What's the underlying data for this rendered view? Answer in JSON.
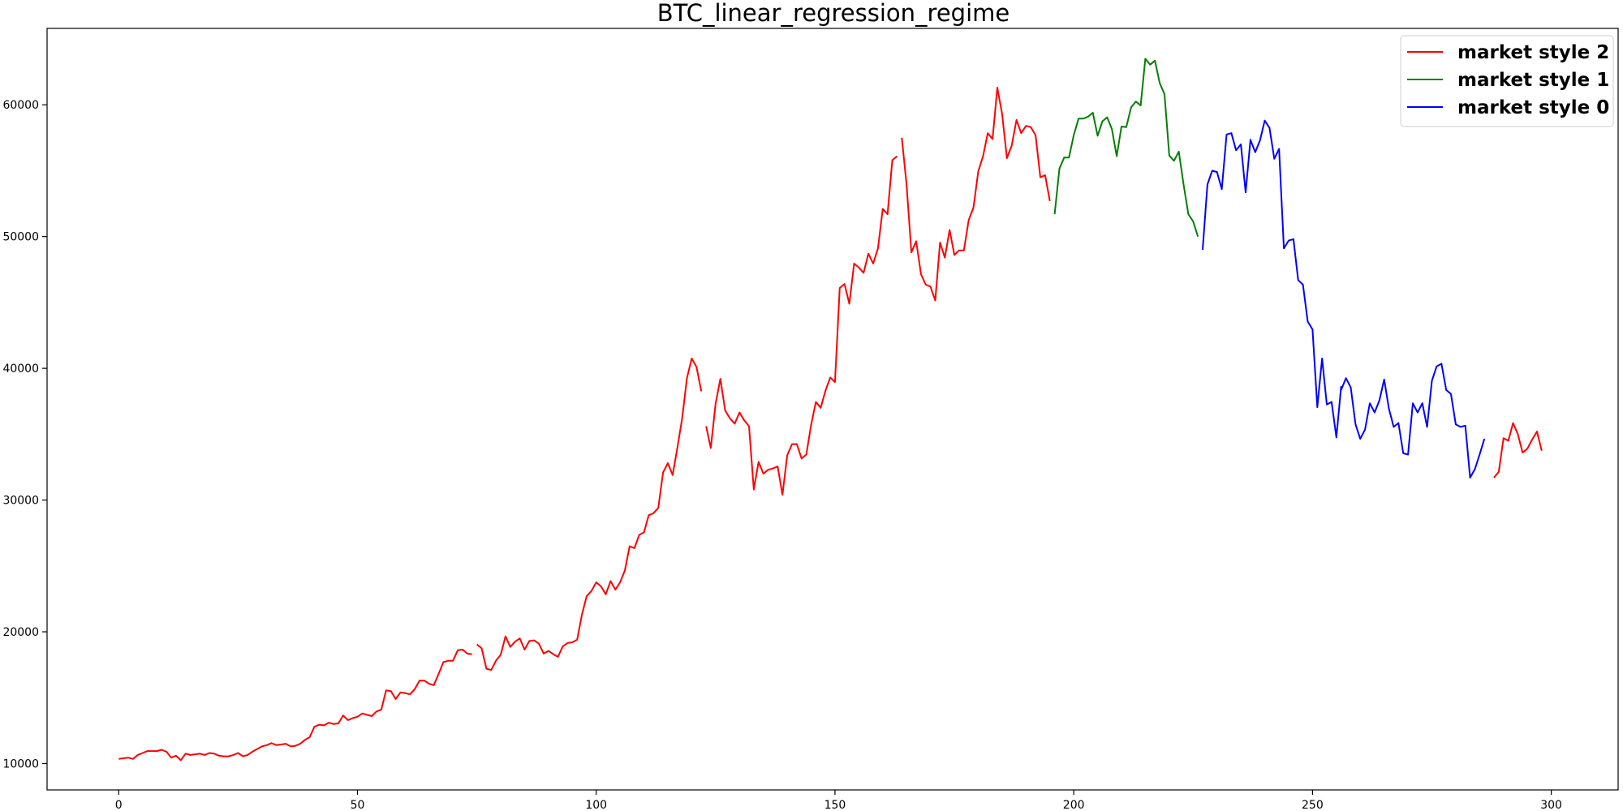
{
  "chart_data": {
    "type": "line",
    "title": "BTC_linear_regression_regime",
    "xlabel": "",
    "ylabel": "",
    "xlim": [
      -15,
      314
    ],
    "ylim": [
      8000,
      65800
    ],
    "xticks": [
      0,
      50,
      100,
      150,
      200,
      250,
      300
    ],
    "yticks": [
      10000,
      20000,
      30000,
      40000,
      50000,
      60000
    ],
    "grid": false,
    "legend_position": "top-right",
    "colors": {
      "market style 2": "#ff0000",
      "market style 1": "#008000",
      "market style 0": "#0000ff"
    },
    "legend": [
      "market style 2",
      "market style 1",
      "market style 0"
    ],
    "segments": [
      {
        "style": "market style 2",
        "x_start": 0,
        "y": [
          10350,
          10400,
          10450,
          10350,
          10650,
          10800,
          10950,
          10950,
          10950,
          11050,
          10900,
          10450,
          10600,
          10250,
          10750,
          10650,
          10700,
          10750,
          10650,
          10800,
          10750,
          10600,
          10550,
          10550,
          10650,
          10800,
          10550,
          10650,
          10900,
          11100,
          11300,
          11400,
          11550,
          11400,
          11450,
          11500,
          11300,
          11350,
          11500,
          11800,
          12000,
          12800,
          12950,
          12900,
          13100,
          13000,
          13050,
          13650,
          13300,
          13450,
          13550,
          13800,
          13700,
          13600,
          13950,
          14100,
          15550,
          15500,
          14900,
          15400,
          15350,
          15250,
          15650,
          16300,
          16300,
          16050,
          15950,
          16800,
          17700,
          17800,
          17800,
          18600,
          18650,
          18350,
          18300
        ]
      },
      {
        "style": "market style 2",
        "x_start": 75,
        "y": [
          19050,
          18750,
          17200,
          17100,
          17800,
          18250,
          19650,
          18850,
          19250,
          19500,
          18650,
          19300,
          19350,
          19100,
          18350,
          18550,
          18300,
          18100,
          18900,
          19150,
          19200,
          19400,
          21300,
          22700,
          23100,
          23750,
          23450,
          22850,
          23850,
          23200,
          23750,
          24650,
          26500,
          26350,
          27350,
          27550,
          28850,
          29000,
          29400,
          32100,
          32800,
          31900,
          34000,
          36200,
          39250,
          40750,
          40100,
          38250
        ]
      },
      {
        "style": "market style 2",
        "x_start": 123,
        "y": [
          35600,
          33950,
          37300,
          39200,
          36800,
          36200,
          35800,
          36650,
          36050,
          35600,
          30800,
          32900,
          32000,
          32300,
          32400,
          32550,
          30400,
          33400,
          34250,
          34250,
          33150,
          33450,
          35700,
          37450,
          37000,
          38300,
          39300,
          38950,
          46100,
          46400,
          44900,
          47950,
          47650,
          47250,
          48700,
          47950,
          49100,
          52100,
          51700,
          55800,
          56100
        ]
      },
      {
        "style": "market style 2",
        "x_start": 164,
        "y": [
          57500,
          53900,
          48800,
          49650,
          47150,
          46350,
          46200,
          45150,
          49550,
          48400,
          50500,
          48600,
          48950,
          48950,
          51250,
          52200,
          54950,
          56100,
          57850,
          57400,
          61300,
          59300,
          55950,
          56900,
          58850,
          57850,
          58400,
          58300,
          57700,
          54500,
          54650,
          52700
        ]
      },
      {
        "style": "market style 1",
        "x_start": 196,
        "y": [
          51700,
          55150,
          56000,
          56000,
          57700,
          58950,
          58950,
          59100,
          59400,
          57650,
          58750,
          59050,
          58150,
          56100,
          58350,
          58300,
          59800,
          60250,
          59950,
          63500,
          63050,
          63350,
          61650,
          60800,
          56150,
          55750,
          56450,
          53950,
          51700,
          51150,
          50000
        ]
      },
      {
        "style": "market style 0",
        "x_start": 227,
        "y": [
          49000,
          53950,
          55000,
          54900,
          53600,
          57750,
          57850,
          56550,
          57000,
          53350,
          57350,
          56400,
          57300,
          58800,
          58250,
          55900,
          56650,
          49100,
          49700,
          49800,
          46700,
          46350,
          43550,
          42950,
          37050,
          40750,
          37250,
          37450,
          34750,
          38650
        ]
      },
      {
        "style": "market style 0",
        "x_start": 256,
        "y": [
          38350,
          39250,
          38550,
          35750,
          34650,
          35350,
          37350,
          36650,
          37550,
          39150,
          36950,
          35550,
          35850,
          33550,
          33450,
          37350,
          36650,
          37350,
          35550,
          39050,
          40150,
          40350,
          38350,
          38050,
          35750,
          35550,
          35650,
          31700,
          32350,
          33450,
          34650
        ]
      },
      {
        "style": "market style 2",
        "x_start": 288,
        "y": [
          31700,
          32150,
          34700,
          34500,
          35850,
          35000,
          33600,
          33900,
          34600,
          35200,
          33750
        ]
      }
    ]
  }
}
